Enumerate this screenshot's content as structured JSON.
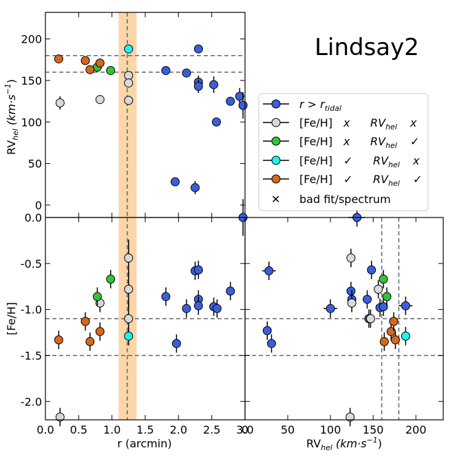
{
  "title": "Lindsay2",
  "colors": {
    "blue": "#3a5fdc",
    "gray": "#d9d9d9",
    "green": "#36c236",
    "cyan": "#19f5f5",
    "orange": "#d2691e",
    "band": "#fcd5a8",
    "dashed": "#666666"
  },
  "legend": {
    "items": [
      {
        "key": "blue",
        "text": "r > r_tidal"
      },
      {
        "key": "gray",
        "text": "[Fe/H]  x     RV_hel  x"
      },
      {
        "key": "green",
        "text": "[Fe/H]  x     RV_hel  ✓"
      },
      {
        "key": "cyan",
        "text": "[Fe/H]  ✓     RV_hel  x"
      },
      {
        "key": "orange",
        "text": "[Fe/H]  ✓     RV_hel  ✓"
      },
      {
        "key": "cross",
        "text": "bad fit/spectrum"
      }
    ]
  },
  "chart_data": [
    {
      "type": "scatter",
      "panel": "top-left",
      "xlabel": "",
      "ylabel": "RV_hel (km·s⁻¹)",
      "xlim": [
        0,
        3.0
      ],
      "ylim": [
        -15,
        232
      ],
      "yticks": [
        0,
        50,
        100,
        150,
        200
      ],
      "ytick_labels": [
        "0",
        "50",
        "100",
        "150",
        "200"
      ],
      "hlines": [
        160,
        180
      ],
      "vline": 1.23,
      "band": [
        1.1,
        1.37
      ],
      "series": [
        {
          "name": "blue",
          "points": [
            [
              1.81,
              162,
              0
            ],
            [
              2.12,
              159,
              0
            ],
            [
              2.3,
              188,
              0
            ],
            [
              2.3,
              148,
              8
            ],
            [
              2.3,
              143,
              8
            ],
            [
              2.53,
              145,
              10
            ],
            [
              2.57,
              100,
              0
            ],
            [
              2.78,
              125,
              0
            ],
            [
              2.92,
              131,
              10
            ],
            [
              2.97,
              120,
              16
            ],
            [
              1.95,
              28,
              0
            ],
            [
              2.25,
              21,
              8
            ]
          ]
        },
        {
          "name": "gray",
          "points": [
            [
              0.22,
              123,
              8
            ],
            [
              0.82,
              127,
              0
            ],
            [
              1.25,
              156,
              0
            ],
            [
              1.25,
              147,
              0
            ],
            [
              1.25,
              126,
              0
            ]
          ]
        },
        {
          "name": "green",
          "points": [
            [
              0.78,
              166,
              0
            ],
            [
              0.98,
              162,
              0
            ]
          ]
        },
        {
          "name": "cyan",
          "points": [
            [
              1.25,
              188,
              0
            ]
          ]
        },
        {
          "name": "orange",
          "points": [
            [
              0.2,
              176,
              0
            ],
            [
              0.6,
              174,
              0
            ],
            [
              0.67,
              163,
              0
            ],
            [
              0.82,
              171,
              0
            ]
          ]
        }
      ]
    },
    {
      "type": "scatter",
      "panel": "bottom-left",
      "xlabel": "r (arcmin)",
      "ylabel": "[Fe/H]",
      "xlim": [
        0,
        3.0
      ],
      "ylim": [
        -2.2,
        0.0
      ],
      "xticks": [
        0,
        0.5,
        1.0,
        1.5,
        2.0,
        2.5,
        3.0
      ],
      "xtick_labels": [
        "0.0",
        "0.5",
        "1.0",
        "1.5",
        "2.0",
        "2.5",
        "3.0"
      ],
      "yticks": [
        0.0,
        -0.5,
        -1.0,
        -1.5,
        -2.0
      ],
      "ytick_labels": [
        "0.0",
        "-0.5",
        "-1.0",
        "-1.5",
        "-2.0"
      ],
      "hlines": [
        -1.1,
        -1.5
      ],
      "vline": 1.23,
      "band": [
        1.1,
        1.37
      ],
      "series": [
        {
          "name": "blue",
          "points": [
            [
              1.81,
              -0.86,
              0.1
            ],
            [
              1.97,
              -1.37,
              0.1
            ],
            [
              2.12,
              -0.99,
              0.1
            ],
            [
              2.25,
              -0.58,
              0.1
            ],
            [
              2.3,
              -0.57,
              0.1
            ],
            [
              2.3,
              -0.89,
              0.1
            ],
            [
              2.3,
              -0.96,
              0.1
            ],
            [
              2.53,
              -0.97,
              0.1
            ],
            [
              2.58,
              -0.99,
              0.1
            ],
            [
              2.78,
              -0.8,
              0.1
            ],
            [
              2.97,
              0.0,
              0.2
            ]
          ]
        },
        {
          "name": "gray",
          "points": [
            [
              0.22,
              -2.17,
              0.1
            ],
            [
              0.82,
              -0.93,
              0.1
            ],
            [
              1.25,
              -0.44,
              0.2
            ],
            [
              1.25,
              -0.78,
              0.2
            ],
            [
              1.25,
              -1.1,
              0.2
            ]
          ]
        },
        {
          "name": "green",
          "points": [
            [
              0.78,
              -0.86,
              0.1
            ],
            [
              0.98,
              -0.67,
              0.1
            ]
          ]
        },
        {
          "name": "cyan",
          "points": [
            [
              1.25,
              -1.29,
              0.1
            ]
          ]
        },
        {
          "name": "orange",
          "points": [
            [
              0.2,
              -1.33,
              0.1
            ],
            [
              0.6,
              -1.13,
              0.1
            ],
            [
              0.67,
              -1.35,
              0.1
            ],
            [
              0.82,
              -1.24,
              0.1
            ]
          ]
        }
      ]
    },
    {
      "type": "scatter",
      "panel": "bottom-right",
      "xlabel": "RV_hel (km·s⁻¹)",
      "ylabel": "",
      "xlim": [
        0,
        232
      ],
      "ylim": [
        -2.2,
        0.0
      ],
      "xticks": [
        0,
        50,
        100,
        150,
        200
      ],
      "xtick_labels": [
        "0",
        "50",
        "100",
        "150",
        "200"
      ],
      "hlines": [
        -1.1,
        -1.5
      ],
      "vlines": [
        160,
        180
      ],
      "series": [
        {
          "name": "blue",
          "points": [
            [
              28,
              -0.58,
              8
            ],
            [
              26,
              -1.23,
              5
            ],
            [
              31,
              -1.37,
              5
            ],
            [
              100,
              -0.99,
              8
            ],
            [
              124,
              -0.8,
              5
            ],
            [
              125,
              -0.89,
              5
            ],
            [
              131,
              0.0,
              10
            ],
            [
              143,
              -0.89,
              5
            ],
            [
              145,
              -1.1,
              5
            ],
            [
              148,
              -0.57,
              5
            ],
            [
              158,
              -0.98,
              5
            ],
            [
              162,
              -0.97,
              5
            ],
            [
              188,
              -0.96,
              8
            ]
          ]
        },
        {
          "name": "gray",
          "points": [
            [
              124,
              -0.44,
              0
            ],
            [
              125,
              -0.93,
              0
            ],
            [
              147,
              -1.1,
              0
            ],
            [
              156,
              -0.78,
              0
            ],
            [
              123,
              -2.17,
              0
            ]
          ]
        },
        {
          "name": "green",
          "points": [
            [
              162,
              -0.67,
              0
            ],
            [
              166,
              -0.86,
              0
            ]
          ]
        },
        {
          "name": "cyan",
          "points": [
            [
              188,
              -1.29,
              0
            ]
          ]
        },
        {
          "name": "orange",
          "points": [
            [
              163,
              -1.35,
              0
            ],
            [
              171,
              -1.24,
              0
            ],
            [
              174,
              -1.13,
              0
            ],
            [
              176,
              -1.33,
              0
            ]
          ]
        }
      ]
    }
  ],
  "labels": {
    "top_ylabel_main": "RV",
    "top_ylabel_sub": "hel",
    "top_ylabel_units": " (km·s",
    "top_ylabel_exp": "−1",
    "top_ylabel_end": ")",
    "bl_ylabel": "[Fe/H]",
    "bl_xlabel": "r (arcmin)",
    "br_xlabel_main": "RV",
    "br_xlabel_sub": "hel",
    "br_xlabel_units": " (km·s",
    "br_xlabel_exp": "−1",
    "br_xlabel_end": ")",
    "legend_r": "r",
    "legend_gt": " > r",
    "legend_tidal": "tidal",
    "legend_feh": "[Fe/H]",
    "legend_rv": "RV",
    "legend_hel": "hel",
    "legend_x": "x",
    "legend_check": "✓",
    "legend_cross_symbol": "✕",
    "legend_bad": "bad fit/spectrum"
  }
}
